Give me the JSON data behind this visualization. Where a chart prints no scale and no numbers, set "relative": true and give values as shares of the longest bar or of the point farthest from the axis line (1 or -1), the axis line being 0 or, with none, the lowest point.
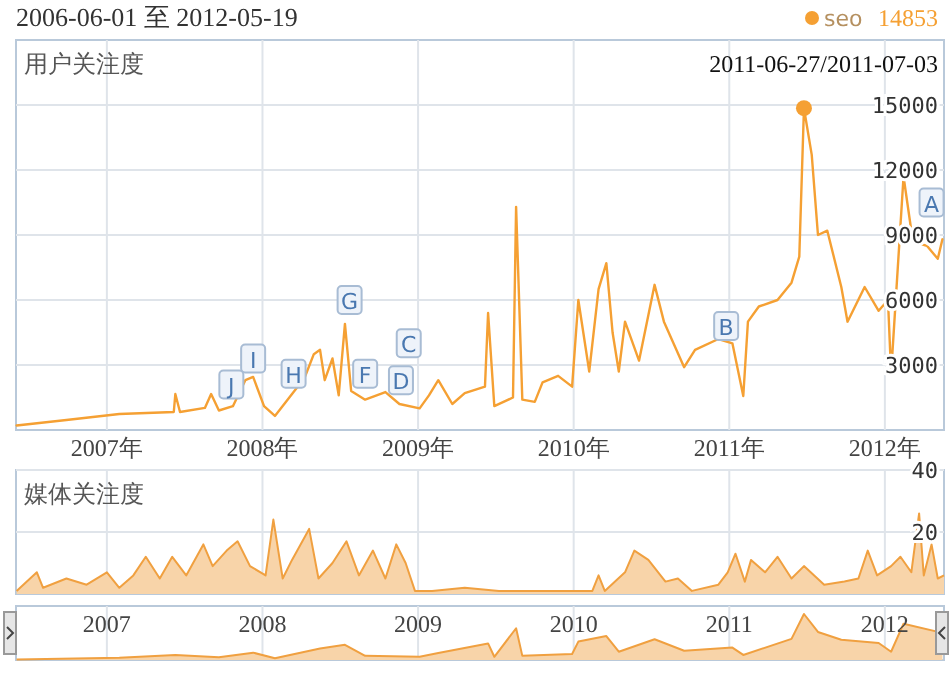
{
  "chart_data": [
    {
      "type": "line",
      "title": "2006-06-01 至 2012-05-19",
      "subtitle": "用户关注度",
      "xlim": [
        2006.416,
        2012.38
      ],
      "xticks": [
        {
          "value": 2007,
          "label": "2007年"
        },
        {
          "value": 2008,
          "label": "2008年"
        },
        {
          "value": 2009,
          "label": "2009年"
        },
        {
          "value": 2010,
          "label": "2010年"
        },
        {
          "value": 2011,
          "label": "2011年"
        },
        {
          "value": 2012,
          "label": "2012年"
        }
      ],
      "ylim": [
        0,
        18000
      ],
      "yticks": [
        3000,
        6000,
        9000,
        12000,
        15000
      ],
      "grid": true,
      "legend": "top right",
      "series": [
        {
          "name": "seo",
          "color": "#f5a033",
          "x": [
            2006.42,
            2006.74,
            2007.08,
            2007.43,
            2007.44,
            2007.47,
            2007.63,
            2007.67,
            2007.72,
            2007.81,
            2007.89,
            2007.94,
            2008.01,
            2008.08,
            2008.2,
            2008.27,
            2008.33,
            2008.37,
            2008.4,
            2008.45,
            2008.49,
            2008.53,
            2008.57,
            2008.66,
            2008.79,
            2008.88,
            2009.01,
            2009.07,
            2009.13,
            2009.22,
            2009.3,
            2009.43,
            2009.45,
            2009.49,
            2009.61,
            2009.63,
            2009.67,
            2009.75,
            2009.8,
            2009.9,
            2009.99,
            2010.03,
            2010.1,
            2010.16,
            2010.21,
            2010.25,
            2010.29,
            2010.33,
            2010.42,
            2010.52,
            2010.58,
            2010.71,
            2010.78,
            2010.93,
            2011.02,
            2011.09,
            2011.12,
            2011.19,
            2011.31,
            2011.4,
            2011.45,
            2011.48,
            2011.53,
            2011.57,
            2011.63,
            2011.72,
            2011.76,
            2011.87,
            2011.96,
            2012.02,
            2012.04,
            2012.12,
            2012.18,
            2012.27,
            2012.34,
            2012.37
          ],
          "values": [
            210,
            460,
            740,
            830,
            1660,
            830,
            1020,
            1660,
            900,
            1100,
            2300,
            2450,
            1100,
            650,
            1750,
            2400,
            3500,
            3700,
            2300,
            3300,
            1600,
            4900,
            1800,
            1400,
            1750,
            1200,
            1000,
            1600,
            2300,
            1200,
            1700,
            2000,
            5400,
            1100,
            1500,
            10300,
            1400,
            1300,
            2200,
            2500,
            2000,
            6000,
            2700,
            6500,
            7700,
            4500,
            2700,
            5000,
            3200,
            6700,
            5000,
            2900,
            3700,
            4200,
            4000,
            1570,
            5000,
            5700,
            6000,
            6800,
            8000,
            14853,
            12700,
            9000,
            9200,
            6600,
            5000,
            6600,
            5500,
            6000,
            2600,
            11700,
            8700,
            8500,
            7900,
            8800
          ]
        },
        {
          "type": "scatter",
          "color": "#f5a033",
          "x": [
            2011.48
          ],
          "values": [
            14853
          ]
        }
      ],
      "annotations": [
        "2011-06-27/2011-07-03",
        "14853",
        {
          "text": "A",
          "x": 2012.3,
          "y": 10500
        },
        {
          "text": "B",
          "x": 2010.98,
          "y": 4800
        },
        {
          "text": "C",
          "x": 2008.94,
          "y": 4000
        },
        {
          "text": "D",
          "x": 2008.89,
          "y": 2300
        },
        {
          "text": "F",
          "x": 2008.66,
          "y": 2600
        },
        {
          "text": "G",
          "x": 2008.56,
          "y": 6000
        },
        {
          "text": "H",
          "x": 2008.2,
          "y": 2600
        },
        {
          "text": "I",
          "x": 2007.94,
          "y": 3300
        },
        {
          "text": "J",
          "x": 2007.8,
          "y": 2100
        }
      ]
    },
    {
      "type": "area",
      "title": "媒体关注度",
      "xlim": [
        2006.416,
        2012.38
      ],
      "xticks": [
        {
          "value": 2007,
          "label": null
        },
        {
          "value": 2008,
          "label": null
        },
        {
          "value": 2009,
          "label": null
        },
        {
          "value": 2010,
          "label": null
        },
        {
          "value": 2011,
          "label": null
        },
        {
          "value": 2012,
          "label": null
        }
      ],
      "ylim": [
        0,
        40
      ],
      "yticks": [
        20,
        40
      ],
      "grid": true,
      "tick_labels": "y",
      "series": [
        {
          "color": "#f0a040",
          "x": [
            2006.42,
            2006.55,
            2006.59,
            2006.74,
            2006.87,
            2007.0,
            2007.08,
            2007.17,
            2007.25,
            2007.34,
            2007.42,
            2007.51,
            2007.62,
            2007.68,
            2007.77,
            2007.84,
            2007.92,
            2008.02,
            2008.07,
            2008.13,
            2008.19,
            2008.3,
            2008.36,
            2008.45,
            2008.54,
            2008.62,
            2008.71,
            2008.79,
            2008.86,
            2008.92,
            2008.98,
            2009.09,
            2009.3,
            2009.52,
            2009.73,
            2009.95,
            2010.12,
            2010.16,
            2010.2,
            2010.33,
            2010.39,
            2010.48,
            2010.59,
            2010.67,
            2010.76,
            2010.93,
            2010.99,
            2011.04,
            2011.1,
            2011.14,
            2011.23,
            2011.31,
            2011.4,
            2011.48,
            2011.61,
            2011.74,
            2011.83,
            2011.89,
            2011.95,
            2012.04,
            2012.1,
            2012.17,
            2012.22,
            2012.25,
            2012.3,
            2012.34,
            2012.38
          ],
          "values": [
            1,
            7,
            2,
            5,
            3,
            7,
            2,
            6,
            12,
            5,
            12,
            6,
            16,
            9,
            14,
            17,
            9,
            6,
            24,
            5,
            11,
            21,
            5,
            10,
            17,
            6,
            14,
            5,
            16,
            10,
            1,
            1,
            2,
            1,
            1,
            1,
            1,
            6,
            1,
            7,
            14,
            11,
            4,
            5,
            1,
            3,
            7,
            13,
            4,
            11,
            7,
            12,
            5,
            9,
            3,
            4,
            5,
            14,
            6,
            9,
            12,
            7,
            26,
            6,
            16,
            5,
            6
          ]
        }
      ]
    },
    {
      "type": "area",
      "relative": true,
      "xlim": [
        2006.416,
        2012.38
      ],
      "xticks": [
        2007,
        2008,
        2009,
        2010,
        2011,
        2012
      ],
      "grid": "x",
      "tick_labels": "x",
      "series": [
        {
          "color": "#f0a040",
          "x": [
            2006.42,
            2007.08,
            2007.44,
            2007.72,
            2007.94,
            2008.08,
            2008.37,
            2008.53,
            2008.66,
            2009.01,
            2009.13,
            2009.45,
            2009.49,
            2009.63,
            2009.67,
            2009.99,
            2010.03,
            2010.21,
            2010.29,
            2010.52,
            2010.71,
            2011.02,
            2011.09,
            2011.4,
            2011.48,
            2011.57,
            2011.72,
            2011.96,
            2012.04,
            2012.12,
            2012.37
          ],
          "values": [
            0.01,
            0.05,
            0.11,
            0.06,
            0.16,
            0.04,
            0.25,
            0.33,
            0.09,
            0.07,
            0.15,
            0.36,
            0.07,
            0.69,
            0.09,
            0.13,
            0.4,
            0.52,
            0.18,
            0.45,
            0.2,
            0.27,
            0.11,
            0.46,
            1,
            0.61,
            0.44,
            0.37,
            0.18,
            0.79,
            0.59
          ]
        }
      ]
    }
  ]
}
